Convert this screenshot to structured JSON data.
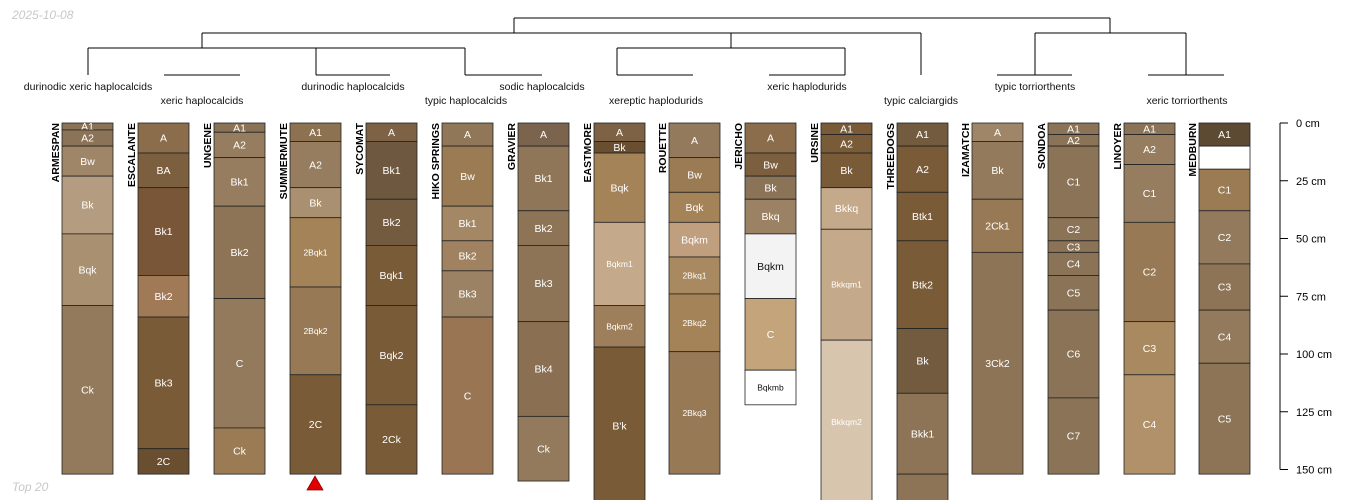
{
  "stamp": "2025-10-08",
  "footer": "Top 20",
  "depth_axis": {
    "unit": "cm",
    "ticks": [
      0,
      25,
      50,
      75,
      100,
      125,
      150
    ],
    "labels": [
      "0 cm",
      "25 cm",
      "50 cm",
      "75 cm",
      "100 cm",
      "125 cm",
      "150 cm"
    ]
  },
  "taxa_labels": [
    "durinodic xeric haplocalcids",
    "xeric haplocalcids",
    "durinodic haplocalcids",
    "typic haplocalcids",
    "sodic haplocalcids",
    "xereptic haplodurids",
    "xeric haplodurids",
    "typic calciargids",
    "typic torriorthents",
    "xeric torriorthents"
  ],
  "profiles": [
    {
      "name": "ARMESPAN",
      "horizons": [
        {
          "name": "A1",
          "top": 0,
          "bottom": 3,
          "color": "#8a7357"
        },
        {
          "name": "A2",
          "top": 3,
          "bottom": 10,
          "color": "#8a7357"
        },
        {
          "name": "Bw",
          "top": 10,
          "bottom": 23,
          "color": "#a08668"
        },
        {
          "name": "Bk",
          "top": 23,
          "bottom": 48,
          "color": "#b49c80"
        },
        {
          "name": "Bqk",
          "top": 48,
          "bottom": 79,
          "color": "#a99070"
        },
        {
          "name": "Ck",
          "top": 79,
          "bottom": 152,
          "color": "#937a5c"
        }
      ]
    },
    {
      "name": "ESCALANTE",
      "horizons": [
        {
          "name": "A",
          "top": 0,
          "bottom": 13,
          "color": "#8b6d4c"
        },
        {
          "name": "BA",
          "top": 13,
          "bottom": 28,
          "color": "#7c5f3f"
        },
        {
          "name": "Bk1",
          "top": 28,
          "bottom": 66,
          "color": "#7a5638"
        },
        {
          "name": "Bk2",
          "top": 66,
          "bottom": 84,
          "color": "#a07a57"
        },
        {
          "name": "Bk3",
          "top": 84,
          "bottom": 141,
          "color": "#7a5b37"
        },
        {
          "name": "2C",
          "top": 141,
          "bottom": 152,
          "color": "#6a4e30"
        }
      ]
    },
    {
      "name": "UNGENE",
      "horizons": [
        {
          "name": "A1",
          "top": 0,
          "bottom": 4,
          "color": "#8a7357"
        },
        {
          "name": "A2",
          "top": 4,
          "bottom": 15,
          "color": "#977d5f"
        },
        {
          "name": "Bk1",
          "top": 15,
          "bottom": 36,
          "color": "#977d5f"
        },
        {
          "name": "Bk2",
          "top": 36,
          "bottom": 76,
          "color": "#8e7456"
        },
        {
          "name": "C",
          "top": 76,
          "bottom": 132,
          "color": "#937a5c"
        },
        {
          "name": "Ck",
          "top": 132,
          "bottom": 152,
          "color": "#9a7b54"
        }
      ]
    },
    {
      "name": "SUMMERMUTE",
      "horizons": [
        {
          "name": "A1",
          "top": 0,
          "bottom": 8,
          "color": "#8d7252"
        },
        {
          "name": "A2",
          "top": 8,
          "bottom": 28,
          "color": "#977d5f"
        },
        {
          "name": "Bk",
          "top": 28,
          "bottom": 41,
          "color": "#a99070"
        },
        {
          "name": "2Bqk1",
          "top": 41,
          "bottom": 71,
          "color": "#a48359"
        },
        {
          "name": "2Bqk2",
          "top": 71,
          "bottom": 109,
          "color": "#977a55"
        },
        {
          "name": "2C",
          "top": 109,
          "bottom": 152,
          "color": "#7a5b37"
        }
      ]
    },
    {
      "name": "SYCOMAT",
      "horizons": [
        {
          "name": "A",
          "top": 0,
          "bottom": 8,
          "color": "#7d6245"
        },
        {
          "name": "Bk1",
          "top": 8,
          "bottom": 33,
          "color": "#6f5840"
        },
        {
          "name": "Bk2",
          "top": 33,
          "bottom": 53,
          "color": "#735b40"
        },
        {
          "name": "Bqk1",
          "top": 53,
          "bottom": 79,
          "color": "#7a5b37"
        },
        {
          "name": "Bqk2",
          "top": 79,
          "bottom": 122,
          "color": "#7a5b37"
        },
        {
          "name": "2Ck",
          "top": 122,
          "bottom": 152,
          "color": "#7a5b37"
        }
      ]
    },
    {
      "name": "HIKO SPRINGS",
      "horizons": [
        {
          "name": "A",
          "top": 0,
          "bottom": 10,
          "color": "#8f7758"
        },
        {
          "name": "Bw",
          "top": 10,
          "bottom": 36,
          "color": "#9a7b54"
        },
        {
          "name": "Bk1",
          "top": 36,
          "bottom": 51,
          "color": "#a48866"
        },
        {
          "name": "Bk2",
          "top": 51,
          "bottom": 64,
          "color": "#a08260"
        },
        {
          "name": "Bk3",
          "top": 64,
          "bottom": 84,
          "color": "#9c8264"
        },
        {
          "name": "C",
          "top": 84,
          "bottom": 152,
          "color": "#9a7554"
        }
      ]
    },
    {
      "name": "GRAVIER",
      "horizons": [
        {
          "name": "A",
          "top": 0,
          "bottom": 10,
          "color": "#7a644e"
        },
        {
          "name": "Bk1",
          "top": 10,
          "bottom": 38,
          "color": "#8f7659"
        },
        {
          "name": "Bk2",
          "top": 38,
          "bottom": 53,
          "color": "#8e7456"
        },
        {
          "name": "Bk3",
          "top": 53,
          "bottom": 86,
          "color": "#8e7456"
        },
        {
          "name": "Bk4",
          "top": 86,
          "bottom": 127,
          "color": "#8a6f52"
        },
        {
          "name": "Ck",
          "top": 127,
          "bottom": 155,
          "color": "#937a5c"
        }
      ]
    },
    {
      "name": "EASTMORE",
      "horizons": [
        {
          "name": "A",
          "top": 0,
          "bottom": 8,
          "color": "#7d6245"
        },
        {
          "name": "Bk",
          "top": 8,
          "bottom": 13,
          "color": "#6a4e30"
        },
        {
          "name": "Bqk",
          "top": 13,
          "bottom": 43,
          "color": "#a48359"
        },
        {
          "name": "Bqkm1",
          "top": 43,
          "bottom": 79,
          "color": "#c4a98a"
        },
        {
          "name": "Bqkm2",
          "top": 79,
          "bottom": 97,
          "color": "#9e7f5b"
        },
        {
          "name": "B'k",
          "top": 97,
          "bottom": 165,
          "color": "#7a5b37"
        }
      ]
    },
    {
      "name": "ROUETTE",
      "horizons": [
        {
          "name": "A",
          "top": 0,
          "bottom": 15,
          "color": "#937a5c"
        },
        {
          "name": "Bw",
          "top": 15,
          "bottom": 30,
          "color": "#9a7b54"
        },
        {
          "name": "Bqk",
          "top": 30,
          "bottom": 43,
          "color": "#a48359"
        },
        {
          "name": "Bqkm",
          "top": 43,
          "bottom": 58,
          "color": "#bf9f7d"
        },
        {
          "name": "2Bkq1",
          "top": 58,
          "bottom": 74,
          "color": "#a9895f"
        },
        {
          "name": "2Bkq2",
          "top": 74,
          "bottom": 99,
          "color": "#a48359"
        },
        {
          "name": "2Bkq3",
          "top": 99,
          "bottom": 152,
          "color": "#977a55"
        }
      ]
    },
    {
      "name": "JERICHO",
      "horizons": [
        {
          "name": "A",
          "top": 0,
          "bottom": 13,
          "color": "#8b6d4c"
        },
        {
          "name": "Bw",
          "top": 13,
          "bottom": 23,
          "color": "#7c5f3f"
        },
        {
          "name": "Bk",
          "top": 23,
          "bottom": 33,
          "color": "#8a7357"
        },
        {
          "name": "Bkq",
          "top": 33,
          "bottom": 48,
          "color": "#9c8264"
        },
        {
          "name": "Bqkm",
          "top": 48,
          "bottom": 76,
          "color": "#f3f3f3"
        },
        {
          "name": "C",
          "top": 76,
          "bottom": 107,
          "color": "#c4a47a"
        },
        {
          "name": "Bqkmb",
          "top": 107,
          "bottom": 122,
          "color": "#ffffff"
        }
      ]
    },
    {
      "name": "URSINE",
      "horizons": [
        {
          "name": "A1",
          "top": 0,
          "bottom": 5,
          "color": "#7a5b37"
        },
        {
          "name": "A2",
          "top": 5,
          "bottom": 13,
          "color": "#7a5b37"
        },
        {
          "name": "Bk",
          "top": 13,
          "bottom": 28,
          "color": "#7a5b37"
        },
        {
          "name": "Bkkq",
          "top": 28,
          "bottom": 46,
          "color": "#c4a98a"
        },
        {
          "name": "Bkkqm1",
          "top": 46,
          "bottom": 94,
          "color": "#c4a98a"
        },
        {
          "name": "Bkkqm2",
          "top": 94,
          "bottom": 165,
          "color": "#d8c5ad"
        }
      ]
    },
    {
      "name": "THREEDOGS",
      "horizons": [
        {
          "name": "A1",
          "top": 0,
          "bottom": 10,
          "color": "#735b40"
        },
        {
          "name": "A2",
          "top": 10,
          "bottom": 30,
          "color": "#7a5b37"
        },
        {
          "name": "Btk1",
          "top": 30,
          "bottom": 51,
          "color": "#7a5b37"
        },
        {
          "name": "Btk2",
          "top": 51,
          "bottom": 89,
          "color": "#7a5b37"
        },
        {
          "name": "Bk",
          "top": 89,
          "bottom": 117,
          "color": "#735b40"
        },
        {
          "name": "Bkk1",
          "top": 117,
          "bottom": 152,
          "color": "#8e7456"
        },
        {
          "name": "",
          "top": 152,
          "bottom": 165,
          "color": "#8e7456"
        }
      ]
    },
    {
      "name": "IZAMATCH",
      "horizons": [
        {
          "name": "A",
          "top": 0,
          "bottom": 8,
          "color": "#a08668"
        },
        {
          "name": "Bk",
          "top": 8,
          "bottom": 33,
          "color": "#937a5c"
        },
        {
          "name": "2Ck1",
          "top": 33,
          "bottom": 56,
          "color": "#977a55"
        },
        {
          "name": "3Ck2",
          "top": 56,
          "bottom": 152,
          "color": "#8e7456"
        }
      ]
    },
    {
      "name": "SONDOA",
      "horizons": [
        {
          "name": "A1",
          "top": 0,
          "bottom": 5,
          "color": "#8a7357"
        },
        {
          "name": "A2",
          "top": 5,
          "bottom": 10,
          "color": "#8a7357"
        },
        {
          "name": "C1",
          "top": 10,
          "bottom": 41,
          "color": "#8a7357"
        },
        {
          "name": "C2",
          "top": 41,
          "bottom": 51,
          "color": "#8a7357"
        },
        {
          "name": "C3",
          "top": 51,
          "bottom": 56,
          "color": "#8a7357"
        },
        {
          "name": "C4",
          "top": 56,
          "bottom": 66,
          "color": "#8a7357"
        },
        {
          "name": "C5",
          "top": 66,
          "bottom": 81,
          "color": "#8a7357"
        },
        {
          "name": "C6",
          "top": 81,
          "bottom": 119,
          "color": "#8a7357"
        },
        {
          "name": "C7",
          "top": 119,
          "bottom": 152,
          "color": "#8a7357"
        }
      ]
    },
    {
      "name": "LINOYER",
      "horizons": [
        {
          "name": "A1",
          "top": 0,
          "bottom": 5,
          "color": "#8a7357"
        },
        {
          "name": "A2",
          "top": 5,
          "bottom": 18,
          "color": "#977d5f"
        },
        {
          "name": "C1",
          "top": 18,
          "bottom": 43,
          "color": "#977d5f"
        },
        {
          "name": "C2",
          "top": 43,
          "bottom": 86,
          "color": "#977a55"
        },
        {
          "name": "C3",
          "top": 86,
          "bottom": 109,
          "color": "#a9895f"
        },
        {
          "name": "C4",
          "top": 109,
          "bottom": 152,
          "color": "#b0916a"
        }
      ]
    },
    {
      "name": "MEDBURN",
      "horizons": [
        {
          "name": "A1",
          "top": 0,
          "bottom": 10,
          "color": "#5d4a33"
        },
        {
          "name": "",
          "top": 10,
          "bottom": 20,
          "color": "#ffffff"
        },
        {
          "name": "C1",
          "top": 20,
          "bottom": 38,
          "color": "#9a7b54"
        },
        {
          "name": "C2",
          "top": 38,
          "bottom": 61,
          "color": "#937a5c"
        },
        {
          "name": "C3",
          "top": 61,
          "bottom": 81,
          "color": "#8e7456"
        },
        {
          "name": "C4",
          "top": 81,
          "bottom": 104,
          "color": "#937a5c"
        },
        {
          "name": "C5",
          "top": 104,
          "bottom": 152,
          "color": "#8e7456"
        }
      ]
    }
  ]
}
